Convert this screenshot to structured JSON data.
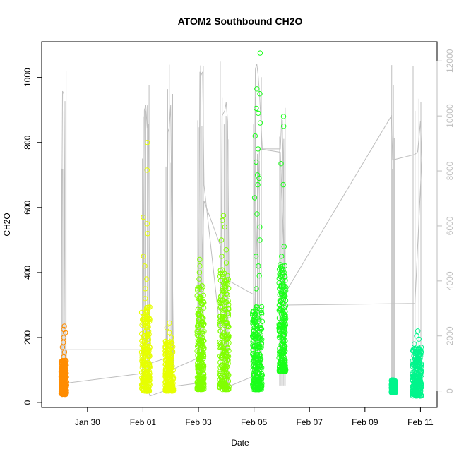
{
  "chart_data": {
    "type": "scatter",
    "title": "ATOM2 Southbound CH2O",
    "xlabel": "Date",
    "ylabel": "CH2O",
    "x_ticks": [
      "Jan 30",
      "Feb 01",
      "Feb 03",
      "Feb 05",
      "Feb 07",
      "Feb 09",
      "Feb 11"
    ],
    "x_tick_values": [
      30,
      32,
      34,
      36,
      38,
      40,
      42
    ],
    "xlim": [
      28.35,
      42.6
    ],
    "y_ticks": [
      0,
      200,
      400,
      600,
      800,
      1000
    ],
    "ylim": [
      -15,
      1110
    ],
    "y2_ticks": [
      0,
      2000,
      4000,
      6000,
      8000,
      10000,
      12000
    ],
    "y2lim": [
      -600,
      12700
    ],
    "grid": false,
    "series": [
      {
        "color": "#ff8c00",
        "flights": [
          {
            "x_start": 29.05,
            "x_end": 29.25,
            "y_min": 25,
            "y_max": 130,
            "outliers": [
              140,
              155,
              170,
              185,
              200,
              215,
              225,
              235
            ]
          }
        ]
      },
      {
        "color": "#e6ff00",
        "flights": [
          {
            "x_start": 31.95,
            "x_end": 32.25,
            "y_min": 35,
            "y_max": 300,
            "outliers": [
              320,
              350,
              380,
              420,
              450,
              520,
              550,
              570,
              715,
              800
            ]
          },
          {
            "x_start": 32.8,
            "x_end": 33.1,
            "y_min": 35,
            "y_max": 190,
            "outliers": [
              200,
              215,
              230,
              245
            ]
          }
        ]
      },
      {
        "color": "#80ff00",
        "flights": [
          {
            "x_start": 33.95,
            "x_end": 34.2,
            "y_min": 40,
            "y_max": 360,
            "outliers": [
              380,
              400,
              420,
              440
            ]
          },
          {
            "x_start": 34.75,
            "x_end": 35.1,
            "y_min": 40,
            "y_max": 410,
            "outliers": [
              430,
              450,
              470,
              500,
              540,
              560,
              575
            ]
          }
        ]
      },
      {
        "color": "#1aff1a",
        "flights": [
          {
            "x_start": 35.95,
            "x_end": 36.3,
            "y_min": 40,
            "y_max": 300,
            "outliers": [
              350,
              390,
              420,
              450,
              500,
              540,
              580,
              630,
              670,
              690,
              700,
              740,
              780,
              820,
              860,
              890,
              905,
              950,
              965,
              1075
            ]
          },
          {
            "x_start": 36.9,
            "x_end": 37.15,
            "y_min": 95,
            "y_max": 430,
            "outliers": [
              450,
              480,
              670,
              735,
              850,
              880
            ]
          }
        ]
      },
      {
        "color": "#00f58c",
        "flights": [
          {
            "x_start": 40.95,
            "x_end": 41.1,
            "y_min": 30,
            "y_max": 70,
            "outliers": []
          },
          {
            "x_start": 41.7,
            "x_end": 42.05,
            "y_min": 20,
            "y_max": 170,
            "outliers": [
              180,
              195,
              205,
              220
            ]
          }
        ]
      }
    ],
    "gray_line_series": {
      "axis": "right",
      "color": "#bebebe",
      "x": [
        29.05,
        29.1,
        29.15,
        29.2,
        29.25,
        32.0,
        32.05,
        32.1,
        32.15,
        32.2,
        32.25,
        32.85,
        32.9,
        32.95,
        33.0,
        33.1,
        34.0,
        34.05,
        34.1,
        34.15,
        34.2,
        34.8,
        34.85,
        34.95,
        35.0,
        35.05,
        35.1,
        36.0,
        36.05,
        36.1,
        36.15,
        36.2,
        36.3,
        36.95,
        37.0,
        37.05,
        37.1,
        37.15,
        40.95,
        41.0,
        41.8,
        41.9,
        42.0,
        42.05
      ],
      "y": [
        800,
        10900,
        10800,
        600,
        1500,
        1500,
        10200,
        10400,
        9600,
        9700,
        1000,
        1200,
        9400,
        9600,
        10400,
        800,
        1200,
        11600,
        11500,
        11600,
        7500,
        2000,
        10000,
        10200,
        10500,
        9800,
        4000,
        3500,
        11700,
        11900,
        11500,
        10800,
        8800,
        8800,
        9900,
        8700,
        3800,
        3600,
        10000,
        8400,
        8600,
        8700,
        9800,
        8400
      ]
    },
    "connector_lines": [
      [
        [
          29.25,
          60
        ],
        [
          32.0,
          90
        ],
        [
          32.25,
          20
        ],
        [
          32.9,
          40
        ],
        [
          33.1,
          50
        ],
        [
          34.0,
          60
        ],
        [
          34.2,
          620
        ],
        [
          34.8,
          480
        ],
        [
          35.1,
          50
        ],
        [
          35.95,
          80
        ],
        [
          36.2,
          780
        ],
        [
          36.95,
          770
        ],
        [
          37.15,
          300
        ],
        [
          41.8,
          305
        ],
        [
          42.05,
          750
        ]
      ]
    ]
  }
}
